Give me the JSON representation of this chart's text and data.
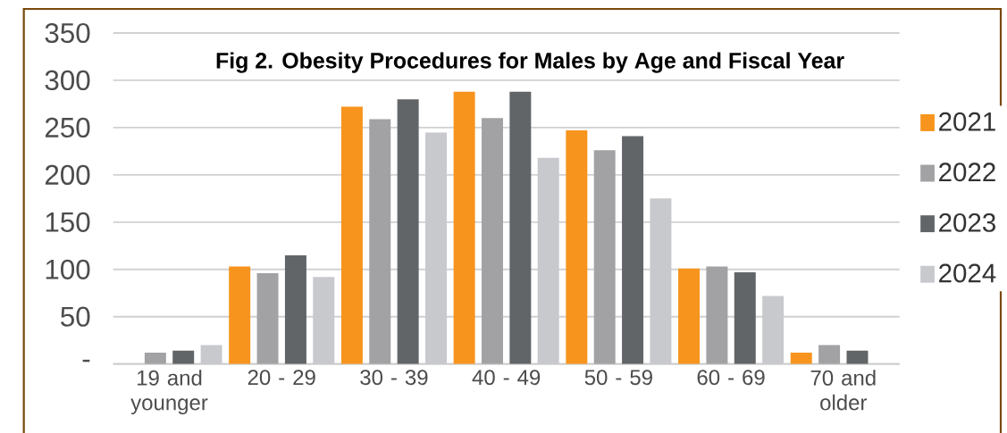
{
  "chart_data": {
    "type": "bar",
    "title": "Fig 2. Obesity Procedures for Males by Age and Fiscal Year",
    "categories": [
      "19 and younger",
      "20 - 29",
      "30 - 39",
      "40 - 49",
      "50 - 59",
      "60 - 69",
      "70 and older"
    ],
    "series": [
      {
        "name": "2021",
        "color": "#f7941d",
        "values": [
          null,
          103,
          272,
          288,
          247,
          101,
          12
        ]
      },
      {
        "name": "2022",
        "color": "#a2a2a4",
        "values": [
          12,
          96,
          259,
          260,
          226,
          103,
          20
        ]
      },
      {
        "name": "2023",
        "color": "#626568",
        "values": [
          14,
          115,
          280,
          288,
          241,
          97,
          14
        ]
      },
      {
        "name": "2024",
        "color": "#c8c9cd",
        "values": [
          20,
          92,
          245,
          218,
          175,
          72,
          null
        ]
      }
    ],
    "ylim": [
      0,
      350
    ],
    "yticks": [
      {
        "value": 0,
        "label": "-"
      },
      50,
      100,
      150,
      200,
      250,
      300,
      350
    ],
    "grid": "y",
    "legend": "right"
  }
}
